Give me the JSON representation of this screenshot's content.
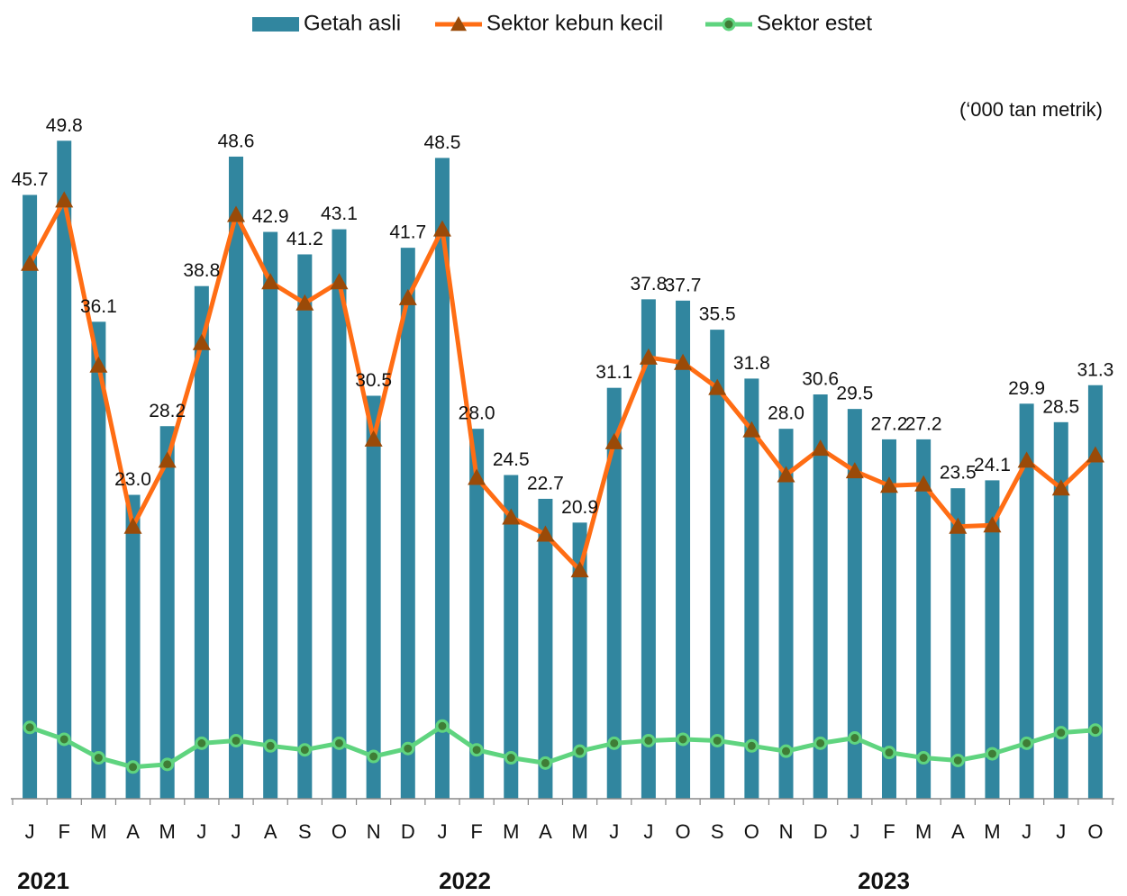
{
  "chart_data": {
    "type": "bar_line",
    "unit": "(‘000 tan metrik)",
    "categories": [
      "J",
      "F",
      "M",
      "A",
      "M",
      "J",
      "J",
      "A",
      "S",
      "O",
      "N",
      "D",
      "J",
      "F",
      "M",
      "A",
      "M",
      "J",
      "J",
      "O",
      "S",
      "O",
      "N",
      "D",
      "J",
      "F",
      "M",
      "A",
      "M",
      "J",
      "J",
      "O"
    ],
    "year_labels": [
      "2021",
      "2022",
      "2023"
    ],
    "ylim": [
      0,
      55
    ],
    "legend": "top",
    "series": [
      {
        "name": "Getah asli",
        "type": "bar",
        "color": "#31869f",
        "values": [
          45.7,
          49.8,
          36.1,
          23.0,
          28.2,
          38.8,
          48.6,
          42.9,
          41.2,
          43.1,
          30.5,
          41.7,
          48.5,
          28.0,
          24.5,
          22.7,
          20.9,
          31.1,
          37.8,
          37.7,
          35.5,
          31.8,
          28.0,
          30.6,
          29.5,
          27.2,
          27.2,
          23.5,
          24.1,
          29.9,
          28.5,
          31.3
        ],
        "value_labels": [
          "45.7",
          "49.8",
          "36.1",
          "23.0",
          "28.2",
          "38.8",
          "48.6",
          "42.9",
          "41.2",
          "43.1",
          "30.5",
          "41.7",
          "48.5",
          "28.0",
          "24.5",
          "22.7",
          "20.9",
          "31.1",
          "37.8",
          "37.7",
          "35.5",
          "31.8",
          "28.0",
          "30.6",
          "29.5",
          "27.2",
          "27.2",
          "23.5",
          "24.1",
          "29.9",
          "28.5",
          "31.3"
        ]
      },
      {
        "name": "Sektor kebun kecil",
        "type": "line",
        "marker": "triangle",
        "color": "#ff6d14",
        "marker_color": "#9a4a08",
        "values": [
          40.5,
          45.3,
          32.8,
          20.6,
          25.6,
          34.5,
          44.2,
          39.1,
          37.5,
          39.1,
          27.2,
          37.9,
          43.1,
          24.3,
          21.3,
          20.0,
          17.3,
          27.0,
          33.4,
          33.0,
          31.1,
          27.9,
          24.5,
          26.5,
          24.8,
          23.7,
          23.8,
          20.6,
          20.7,
          25.6,
          23.5,
          26.0
        ]
      },
      {
        "name": "Sektor estet",
        "type": "line",
        "marker": "circle",
        "color": "#5fd47f",
        "marker_color": "#3f7d36",
        "values": [
          5.4,
          4.5,
          3.1,
          2.4,
          2.6,
          4.2,
          4.4,
          4.0,
          3.7,
          4.2,
          3.2,
          3.8,
          5.5,
          3.7,
          3.1,
          2.7,
          3.6,
          4.2,
          4.4,
          4.5,
          4.4,
          4.0,
          3.6,
          4.2,
          4.6,
          3.5,
          3.1,
          2.9,
          3.4,
          4.2,
          5.0,
          5.2
        ]
      }
    ]
  }
}
